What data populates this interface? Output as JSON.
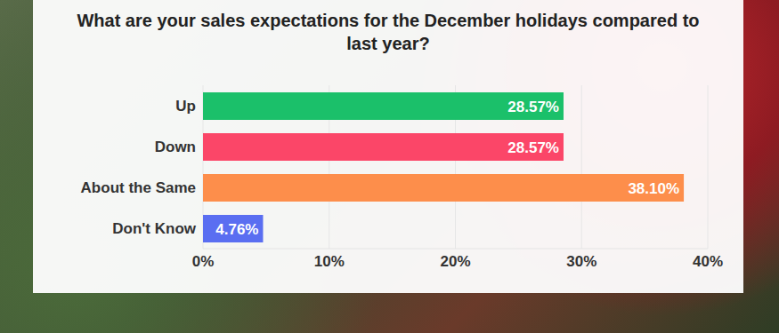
{
  "chart_data": {
    "type": "bar",
    "title": "What are your sales expectations for the December holidays compared to last year?",
    "orientation": "horizontal",
    "categories": [
      "Up",
      "Down",
      "About the Same",
      "Don't Know"
    ],
    "values": [
      28.57,
      28.57,
      38.1,
      4.76
    ],
    "value_labels": [
      "28.57%",
      "28.57%",
      "38.10%",
      "4.76%"
    ],
    "colors": [
      "#1bc06a",
      "#fb4668",
      "#fd8e4b",
      "#5a6ef1"
    ],
    "xlim": [
      0,
      40
    ],
    "xticks": [
      {
        "value": 0,
        "label": "0%"
      },
      {
        "value": 10,
        "label": "10%"
      },
      {
        "value": 20,
        "label": "20%"
      },
      {
        "value": 30,
        "label": "30%"
      },
      {
        "value": 40,
        "label": "40%"
      }
    ],
    "grid": true,
    "data_labels": true
  }
}
